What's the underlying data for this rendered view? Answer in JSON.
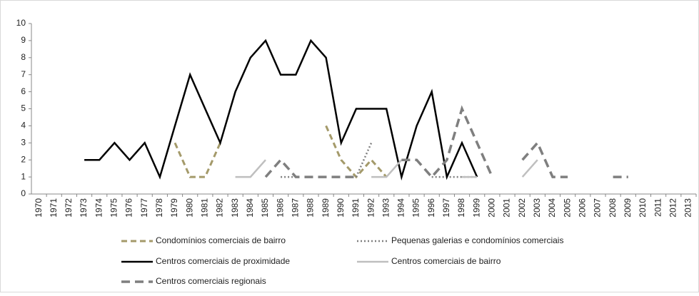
{
  "chart_data": {
    "type": "line",
    "categories": [
      "1970",
      "1971",
      "1972",
      "1973",
      "1974",
      "1975",
      "1976",
      "1977",
      "1978",
      "1979",
      "1980",
      "1981",
      "1982",
      "1983",
      "1984",
      "1985",
      "1986",
      "1987",
      "1988",
      "1989",
      "1990",
      "1991",
      "1992",
      "1993",
      "1994",
      "1995",
      "1996",
      "1997",
      "1998",
      "1999",
      "2000",
      "2001",
      "2002",
      "2003",
      "2004",
      "2005",
      "2006",
      "2007",
      "2008",
      "2009",
      "2010",
      "2011",
      "2012",
      "2013"
    ],
    "ylim": [
      0,
      10
    ],
    "yticks": [
      0,
      1,
      2,
      3,
      4,
      5,
      6,
      7,
      8,
      9,
      10
    ],
    "series": [
      {
        "name": "Condomínios comerciais de bairro",
        "color": "#a49a6a",
        "values": [
          null,
          null,
          null,
          null,
          null,
          null,
          null,
          null,
          null,
          3,
          1,
          1,
          3,
          null,
          null,
          null,
          null,
          null,
          null,
          4,
          2,
          1,
          2,
          1,
          null,
          null,
          null,
          null,
          null,
          null,
          null,
          null,
          null,
          null,
          null,
          null,
          null,
          null,
          null,
          null,
          null,
          null,
          null,
          null
        ]
      },
      {
        "name": "Pequenas galerias e condomínios comerciais",
        "color": "#808080",
        "values": [
          null,
          null,
          null,
          null,
          null,
          null,
          null,
          null,
          null,
          null,
          null,
          null,
          null,
          null,
          null,
          null,
          1,
          1,
          null,
          null,
          null,
          1,
          3,
          null,
          null,
          null,
          1,
          1,
          1,
          1,
          null,
          null,
          null,
          null,
          null,
          null,
          null,
          null,
          null,
          null,
          null,
          null,
          null,
          null
        ]
      },
      {
        "name": "Centros comerciais de proximidade",
        "color": "#000000",
        "values": [
          null,
          null,
          null,
          2,
          2,
          3,
          2,
          3,
          1,
          4,
          7,
          5,
          3,
          6,
          8,
          9,
          7,
          7,
          9,
          8,
          3,
          5,
          5,
          5,
          1,
          4,
          6,
          1,
          3,
          1,
          null,
          null,
          null,
          null,
          null,
          null,
          null,
          null,
          null,
          null,
          null,
          null,
          null,
          null
        ]
      },
      {
        "name": "Centros comerciais de bairro",
        "color": "#bfbfbf",
        "values": [
          null,
          null,
          null,
          null,
          null,
          null,
          null,
          null,
          null,
          null,
          null,
          null,
          null,
          1,
          1,
          2,
          null,
          null,
          null,
          null,
          null,
          null,
          1,
          1,
          2,
          null,
          null,
          null,
          1,
          1,
          null,
          null,
          1,
          2,
          null,
          null,
          null,
          null,
          null,
          null,
          null,
          null,
          null,
          null
        ]
      },
      {
        "name": "Centros comerciais regionais",
        "color": "#7f7f7f",
        "values": [
          null,
          null,
          null,
          null,
          null,
          null,
          null,
          null,
          null,
          null,
          null,
          null,
          null,
          null,
          null,
          1,
          2,
          1,
          1,
          1,
          1,
          1,
          null,
          null,
          2,
          2,
          1,
          2,
          5,
          3,
          1,
          null,
          2,
          3,
          1,
          1,
          null,
          null,
          1,
          1,
          null,
          null,
          null,
          null
        ]
      }
    ]
  }
}
